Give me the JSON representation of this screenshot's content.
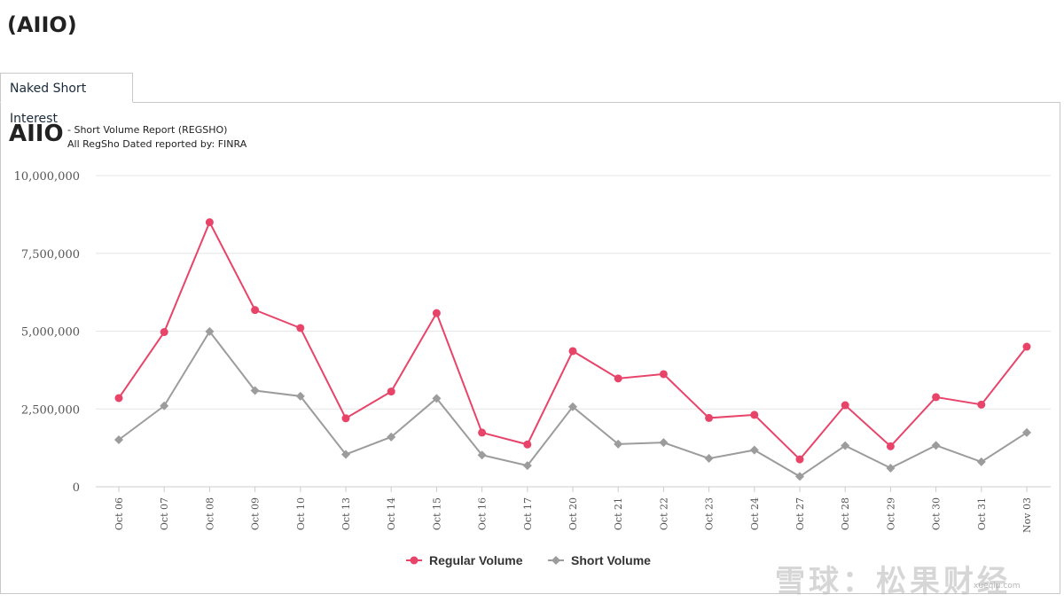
{
  "page": {
    "title": "(AIIO)"
  },
  "tabs": [
    {
      "label": "Naked Short Interest"
    }
  ],
  "report": {
    "ticker": "AIIO",
    "line1": "- Short Volume Report  (REGSHO)",
    "line2": "All RegSho Dated reported by: FINRA"
  },
  "watermark": {
    "text": "雪球：松果财经",
    "url": "xueqiu.com"
  },
  "colors": {
    "regular": "#e8446a",
    "short": "#9c9c9c",
    "grid": "#e6e6e6"
  },
  "chart_data": {
    "type": "line",
    "categories": [
      "Oct 06",
      "Oct 07",
      "Oct 08",
      "Oct 09",
      "Oct 10",
      "Oct 13",
      "Oct 14",
      "Oct 15",
      "Oct 16",
      "Oct 17",
      "Oct 20",
      "Oct 21",
      "Oct 22",
      "Oct 23",
      "Oct 24",
      "Oct 27",
      "Oct 28",
      "Oct 29",
      "Oct 30",
      "Oct 31",
      "Nov 03"
    ],
    "ylim": [
      0,
      10000000
    ],
    "yticks": [
      0,
      2500000,
      5000000,
      7500000,
      10000000
    ],
    "ytick_labels": [
      "0",
      "2,500,000",
      "5,000,000",
      "7,500,000",
      "10,000,000"
    ],
    "grid": true,
    "legend_position": "bottom-center",
    "series": [
      {
        "name": "Regular Volume",
        "marker": "circle",
        "values": [
          2850000,
          4970000,
          8500000,
          5680000,
          5100000,
          2200000,
          3060000,
          5580000,
          1740000,
          1360000,
          4360000,
          3480000,
          3620000,
          2210000,
          2310000,
          880000,
          2620000,
          1300000,
          2880000,
          2640000,
          4500000
        ]
      },
      {
        "name": "Short Volume",
        "marker": "diamond",
        "values": [
          1510000,
          2600000,
          4990000,
          3090000,
          2910000,
          1040000,
          1600000,
          2840000,
          1020000,
          680000,
          2570000,
          1370000,
          1420000,
          910000,
          1180000,
          330000,
          1320000,
          600000,
          1330000,
          800000,
          1740000
        ]
      }
    ]
  }
}
